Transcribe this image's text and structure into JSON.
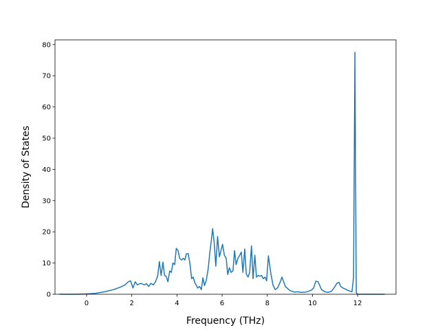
{
  "chart_data": {
    "type": "line",
    "xlabel": "Frequency (THz)",
    "ylabel": "Density of States",
    "xlim": [
      -1.4,
      13.7
    ],
    "ylim": [
      0,
      81.5
    ],
    "xticks": [
      0,
      2,
      4,
      6,
      8,
      10,
      12
    ],
    "yticks": [
      0,
      10,
      20,
      30,
      40,
      50,
      60,
      70,
      80
    ],
    "xtick_labels": [
      "0",
      "2",
      "4",
      "6",
      "8",
      "10",
      "12"
    ],
    "ytick_labels": [
      "0",
      "10",
      "20",
      "30",
      "40",
      "50",
      "60",
      "70",
      "80"
    ],
    "grid": false,
    "legend": "none",
    "line_color": "#1f77b4",
    "series": [
      {
        "x": [
          -1.2,
          -0.5,
          0.0,
          0.4,
          0.8,
          1.2,
          1.5,
          1.7,
          1.85,
          1.95,
          2.05,
          2.15,
          2.25,
          2.4,
          2.55,
          2.65,
          2.75,
          2.85,
          2.95,
          3.05,
          3.15,
          3.22,
          3.3,
          3.38,
          3.45,
          3.52,
          3.6,
          3.68,
          3.75,
          3.82,
          3.9,
          3.97,
          4.05,
          4.12,
          4.2,
          4.28,
          4.35,
          4.42,
          4.5,
          4.58,
          4.65,
          4.72,
          4.8,
          4.85,
          4.92,
          5.0,
          5.08,
          5.15,
          5.22,
          5.3,
          5.38,
          5.45,
          5.52,
          5.58,
          5.65,
          5.72,
          5.8,
          5.88,
          5.95,
          6.02,
          6.1,
          6.18,
          6.25,
          6.32,
          6.4,
          6.48,
          6.55,
          6.62,
          6.7,
          6.78,
          6.85,
          6.92,
          7.0,
          7.07,
          7.15,
          7.22,
          7.3,
          7.37,
          7.45,
          7.52,
          7.6,
          7.68,
          7.75,
          7.82,
          7.9,
          7.97,
          8.05,
          8.15,
          8.25,
          8.35,
          8.45,
          8.55,
          8.65,
          8.8,
          9.0,
          9.2,
          9.35,
          9.5,
          9.7,
          9.85,
          9.95,
          10.05,
          10.15,
          10.25,
          10.4,
          10.55,
          10.7,
          10.85,
          10.98,
          11.08,
          11.18,
          11.25,
          11.35,
          11.5,
          11.65,
          11.75,
          11.82,
          11.88,
          11.94,
          12.0,
          12.5,
          13.2
        ],
        "y": [
          0.0,
          0.0,
          0.1,
          0.3,
          0.8,
          1.5,
          2.3,
          3.0,
          4.0,
          4.3,
          2.0,
          4.0,
          3.0,
          3.5,
          3.0,
          3.4,
          2.5,
          3.5,
          3.0,
          4.0,
          6.0,
          10.5,
          6.0,
          10.3,
          6.0,
          5.8,
          4.0,
          7.5,
          7.0,
          10.0,
          9.5,
          14.7,
          14.0,
          11.5,
          11.0,
          11.5,
          11.0,
          13.0,
          13.0,
          9.5,
          5.0,
          5.5,
          3.5,
          3.0,
          2.0,
          2.5,
          1.5,
          5.3,
          2.8,
          4.5,
          8.0,
          13.0,
          17.0,
          21.0,
          16.5,
          9.0,
          18.5,
          12.0,
          14.0,
          16.0,
          12.5,
          11.5,
          6.3,
          8.5,
          7.0,
          7.5,
          14.0,
          9.5,
          11.5,
          12.5,
          13.5,
          7.0,
          14.5,
          6.5,
          5.5,
          7.0,
          15.5,
          5.0,
          12.5,
          5.5,
          6.0,
          5.8,
          6.0,
          5.0,
          5.5,
          4.3,
          12.3,
          7.0,
          3.0,
          1.5,
          2.0,
          3.5,
          5.5,
          2.5,
          1.2,
          0.7,
          0.8,
          0.6,
          0.7,
          1.0,
          1.3,
          2.0,
          4.2,
          4.0,
          1.5,
          0.8,
          0.6,
          1.0,
          2.3,
          3.5,
          3.8,
          2.5,
          2.0,
          1.5,
          1.0,
          0.8,
          5.5,
          77.5,
          0.5,
          0.0,
          0.0,
          0.0
        ]
      }
    ]
  }
}
